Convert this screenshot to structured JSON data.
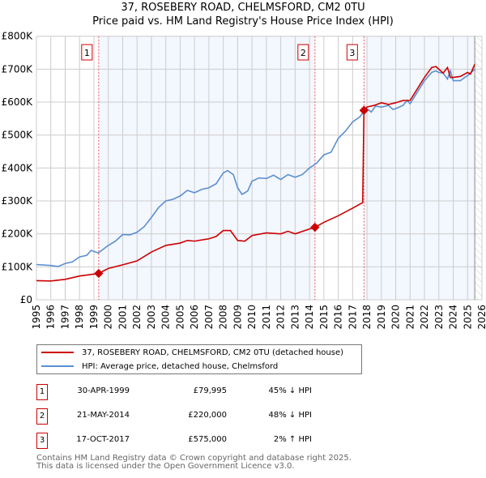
{
  "title": "37, ROSEBERY ROAD, CHELMSFORD, CM2 0TU",
  "subtitle": "Price paid vs. HM Land Registry's House Price Index (HPI)",
  "chart_data": {
    "type": "line",
    "xlim": [
      1995,
      2026
    ],
    "ylim": [
      0,
      800000
    ],
    "y_ticks": [
      {
        "v": 0,
        "label": "£0"
      },
      {
        "v": 100000,
        "label": "£100K"
      },
      {
        "v": 200000,
        "label": "£200K"
      },
      {
        "v": 300000,
        "label": "£300K"
      },
      {
        "v": 400000,
        "label": "£400K"
      },
      {
        "v": 500000,
        "label": "£500K"
      },
      {
        "v": 600000,
        "label": "£600K"
      },
      {
        "v": 700000,
        "label": "£700K"
      },
      {
        "v": 800000,
        "label": "£800K"
      }
    ],
    "x_ticks": [
      "1995",
      "1996",
      "1997",
      "1998",
      "1999",
      "2000",
      "2001",
      "2002",
      "2003",
      "2004",
      "2005",
      "2006",
      "2007",
      "2008",
      "2009",
      "2010",
      "2011",
      "2012",
      "2013",
      "2014",
      "2015",
      "2016",
      "2017",
      "2018",
      "2019",
      "2020",
      "2021",
      "2022",
      "2023",
      "2024",
      "2025",
      "2026"
    ],
    "grid": true,
    "data_end": 2025.5,
    "series": [
      {
        "name": "37, ROSEBERY ROAD, CHELMSFORD, CM2 0TU (detached house)",
        "color": "#cc0000",
        "x": [
          1995,
          1996,
          1997,
          1998,
          1999,
          1999.33,
          2000,
          2001,
          2002,
          2003,
          2004,
          2005,
          2005.5,
          2006,
          2007,
          2007.5,
          2008,
          2008.5,
          2009,
          2009.5,
          2010,
          2011,
          2012,
          2012.5,
          2013,
          2014,
          2014.38,
          2015,
          2016,
          2017,
          2017.7,
          2017.79,
          2018,
          2018.5,
          2019,
          2019.5,
          2020,
          2020.5,
          2021,
          2021.5,
          2022,
          2022.5,
          2022.8,
          2023,
          2023.3,
          2023.6,
          2023.8,
          2024,
          2024.5,
          2025,
          2025.2,
          2025.5
        ],
        "y": [
          58000,
          57000,
          62000,
          72000,
          78000,
          79995,
          95000,
          106000,
          118000,
          145000,
          165000,
          172000,
          180000,
          178000,
          185000,
          192000,
          210000,
          210000,
          180000,
          178000,
          195000,
          203000,
          200000,
          208000,
          200000,
          215000,
          220000,
          235000,
          255000,
          278000,
          295000,
          575000,
          585000,
          590000,
          598000,
          593000,
          598000,
          605000,
          605000,
          640000,
          675000,
          705000,
          708000,
          700000,
          688000,
          705000,
          675000,
          675000,
          678000,
          690000,
          685000,
          715000
        ]
      },
      {
        "name": "HPI: Average price, detached house, Chelmsford",
        "color": "#5b8fd0",
        "x": [
          1995,
          1996,
          1996.5,
          1997,
          1997.5,
          1998,
          1998.5,
          1998.8,
          1999.3,
          2000,
          2000.5,
          2001,
          2001.5,
          2002,
          2002.5,
          2003,
          2003.5,
          2004,
          2004.5,
          2005,
          2005.5,
          2006,
          2006.5,
          2007,
          2007.5,
          2008,
          2008.3,
          2008.7,
          2009,
          2009.3,
          2009.7,
          2010,
          2010.5,
          2011,
          2011.5,
          2012,
          2012.5,
          2013,
          2013.5,
          2014,
          2014.5,
          2015,
          2015.5,
          2016,
          2016.5,
          2017,
          2017.5,
          2017.8,
          2018,
          2018.3,
          2018.6,
          2019,
          2019.5,
          2019.8,
          2020,
          2020.5,
          2020.8,
          2021,
          2021.5,
          2022,
          2022.5,
          2022.8,
          2023,
          2023.3,
          2023.6,
          2023.8,
          2024,
          2024.5,
          2024.8,
          2025,
          2025.5
        ],
        "y": [
          107000,
          104000,
          101000,
          110000,
          115000,
          130000,
          135000,
          150000,
          142000,
          165000,
          178000,
          198000,
          197000,
          205000,
          222000,
          250000,
          280000,
          300000,
          305000,
          315000,
          332000,
          325000,
          335000,
          340000,
          352000,
          385000,
          392000,
          380000,
          340000,
          320000,
          330000,
          360000,
          370000,
          368000,
          378000,
          365000,
          380000,
          372000,
          380000,
          400000,
          415000,
          440000,
          448000,
          490000,
          512000,
          540000,
          555000,
          573000,
          580000,
          570000,
          588000,
          585000,
          590000,
          578000,
          580000,
          590000,
          605000,
          595000,
          630000,
          665000,
          690000,
          695000,
          690000,
          688000,
          670000,
          695000,
          665000,
          665000,
          675000,
          680000,
          700000
        ]
      }
    ],
    "transactions": [
      {
        "n": "1",
        "x": 1999.33,
        "date": "30-APR-1999",
        "price": "£79,995",
        "value": 79995,
        "hpi": "45% ↓ HPI"
      },
      {
        "n": "2",
        "x": 2014.38,
        "date": "21-MAY-2014",
        "price": "£220,000",
        "value": 220000,
        "hpi": "48% ↓ HPI"
      },
      {
        "n": "3",
        "x": 2017.79,
        "date": "17-OCT-2017",
        "price": "£575,000",
        "value": 575000,
        "hpi": "2% ↑ HPI"
      }
    ]
  },
  "footer": {
    "line1": "Contains HM Land Registry data © Crown copyright and database right 2025.",
    "line2": "This data is licensed under the Open Government Licence v3.0."
  }
}
